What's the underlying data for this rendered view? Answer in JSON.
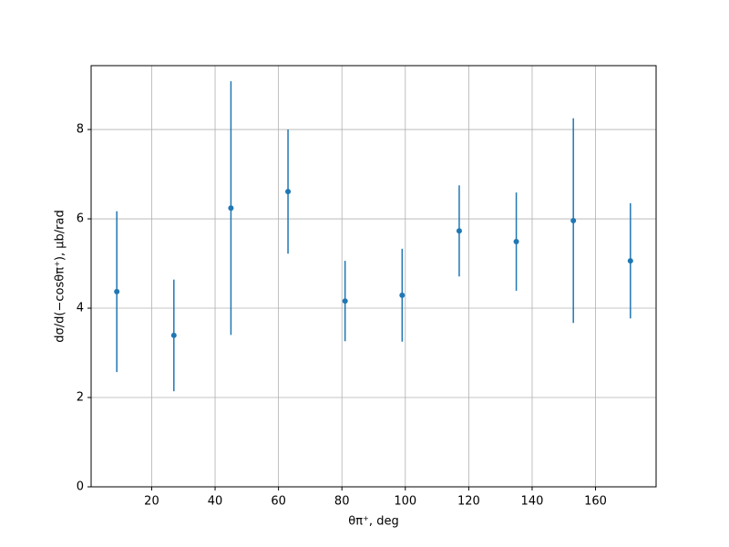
{
  "chart_data": {
    "type": "errorbar",
    "xlabel": "θπ⁺, deg",
    "ylabel": "dσ/d(−cosθπ⁺), μb/rad",
    "x": [
      9,
      27,
      45,
      63,
      81,
      99,
      117,
      135,
      153,
      171
    ],
    "series": [
      {
        "color": "#1f77b4",
        "values": [
          4.37,
          3.39,
          6.24,
          6.61,
          4.16,
          4.29,
          5.73,
          5.49,
          5.96,
          5.06
        ],
        "errors": [
          1.8,
          1.25,
          2.84,
          1.39,
          0.9,
          1.04,
          1.02,
          1.1,
          2.29,
          1.29
        ]
      }
    ],
    "xlim": [
      0.9,
      179.1
    ],
    "ylim": [
      0,
      9.43
    ],
    "xticks": [
      20,
      40,
      60,
      80,
      100,
      120,
      140,
      160
    ],
    "yticks": [
      0,
      2,
      4,
      6,
      8
    ],
    "grid": true
  }
}
